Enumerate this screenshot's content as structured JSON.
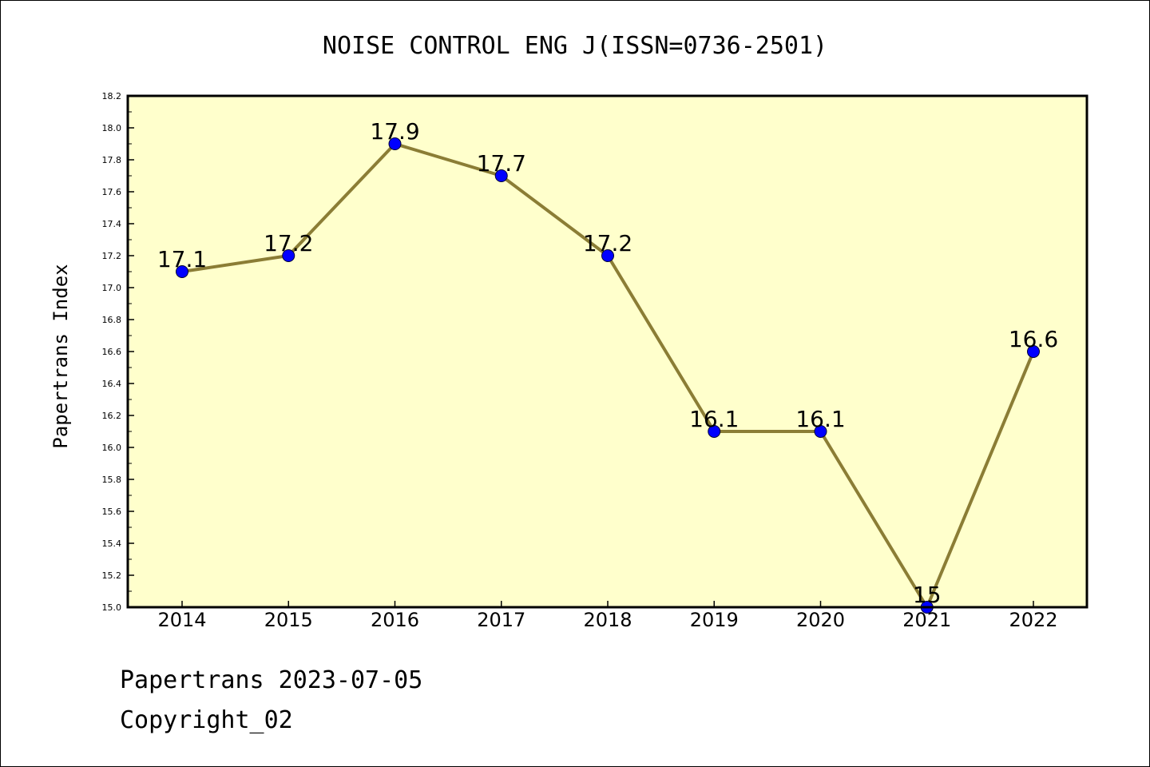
{
  "chart_data": {
    "type": "line",
    "title": "NOISE CONTROL ENG J(ISSN=0736-2501)",
    "xlabel": "",
    "ylabel": "Papertrans Index",
    "categories": [
      "2014",
      "2015",
      "2016",
      "2017",
      "2018",
      "2019",
      "2020",
      "2021",
      "2022"
    ],
    "values": [
      17.1,
      17.2,
      17.9,
      17.7,
      17.2,
      16.1,
      16.1,
      15,
      16.6
    ],
    "data_labels": [
      "17.1",
      "17.2",
      "17.9",
      "17.7",
      "17.2",
      "16.1",
      "16.1",
      "15",
      "16.6"
    ],
    "ylim": [
      15.0,
      18.2
    ],
    "yticks": [
      "15.0",
      "15.2",
      "15.4",
      "15.6",
      "15.8",
      "16.0",
      "16.2",
      "16.4",
      "16.6",
      "16.8",
      "17.0",
      "17.2",
      "17.4",
      "17.6",
      "17.8",
      "18.0",
      "18.2"
    ],
    "grid": false,
    "legend": "none",
    "colors": {
      "plot_background": "#ffffcc",
      "line": "#8b7d35",
      "marker": "#0000ff"
    }
  },
  "footer": {
    "line1": "Papertrans 2023-07-05",
    "line2": "Copyright_02"
  }
}
